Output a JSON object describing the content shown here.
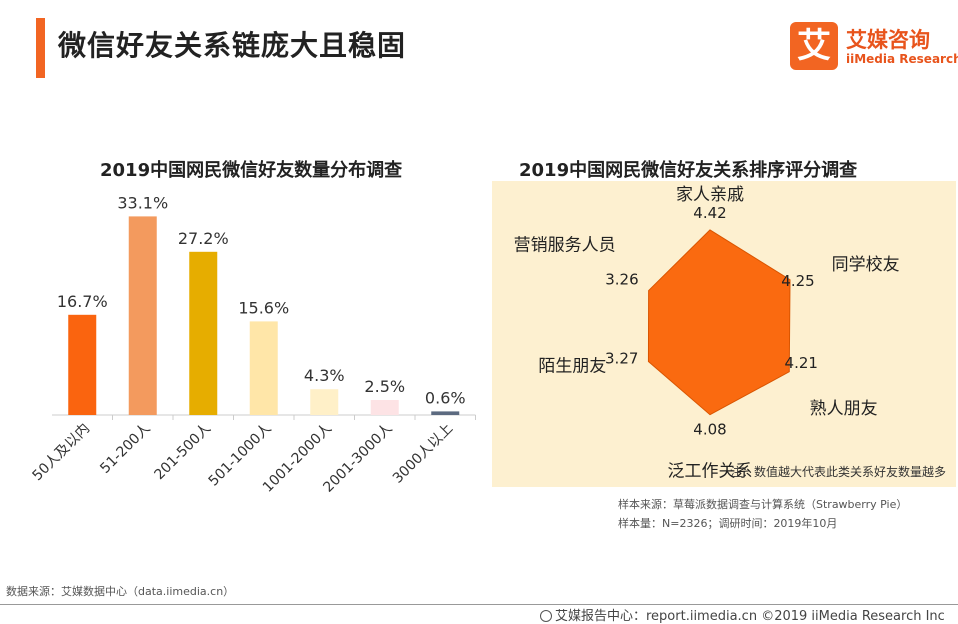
{
  "page": {
    "title": "微信好友关系链庞大且稳固"
  },
  "logo": {
    "mark": "艾",
    "name_cn": "艾媒咨询",
    "name_en": "iiMedia Research"
  },
  "colors": {
    "accent": "#f26522",
    "radar_fill": "#fa6a10",
    "radar_bg": "#fdf0d0"
  },
  "chart_data": [
    {
      "type": "bar",
      "title": "2019中国网民微信好友数量分布调查",
      "categories": [
        "50人及以内",
        "51-200人",
        "201-500人",
        "501-1000人",
        "1001-2000人",
        "2001-3000人",
        "3000人以上"
      ],
      "values": [
        16.7,
        33.1,
        27.2,
        15.6,
        4.3,
        2.5,
        0.6
      ],
      "value_labels": [
        "16.7%",
        "33.1%",
        "27.2%",
        "15.6%",
        "4.3%",
        "2.5%",
        "0.6%"
      ],
      "bar_colors": [
        "#fa640f",
        "#f39a5e",
        "#e6ad00",
        "#ffe6a8",
        "#fff0c8",
        "#fde3e5",
        "#5c6a80"
      ],
      "unit": "%",
      "ylim": [
        0,
        35
      ]
    },
    {
      "type": "radar",
      "title": "2019中国网民微信好友关系排序评分调查",
      "axes": [
        "家人亲戚",
        "同学校友",
        "熟人朋友",
        "泛工作关系",
        "陌生朋友",
        "营销服务人员"
      ],
      "values": [
        4.42,
        4.25,
        4.21,
        4.08,
        3.27,
        3.26
      ],
      "value_labels": [
        "4.42",
        "4.25",
        "4.21",
        "4.08",
        "3.27",
        "3.26"
      ],
      "range": [
        0,
        4.6
      ],
      "note": "注：数值越大代表此类关系好友数量越多"
    }
  ],
  "sources": {
    "sample_source": "样本来源：草莓派数据调查与计算系统（Strawberry Pie）",
    "sample_size": "样本量：N=2326；调研时间：2019年10月",
    "data_source": "数据来源：艾媒数据中心（data.iimedia.cn）"
  },
  "footer": {
    "text": "艾媒报告中心：report.iimedia.cn ©2019  iiMedia Research  Inc"
  }
}
